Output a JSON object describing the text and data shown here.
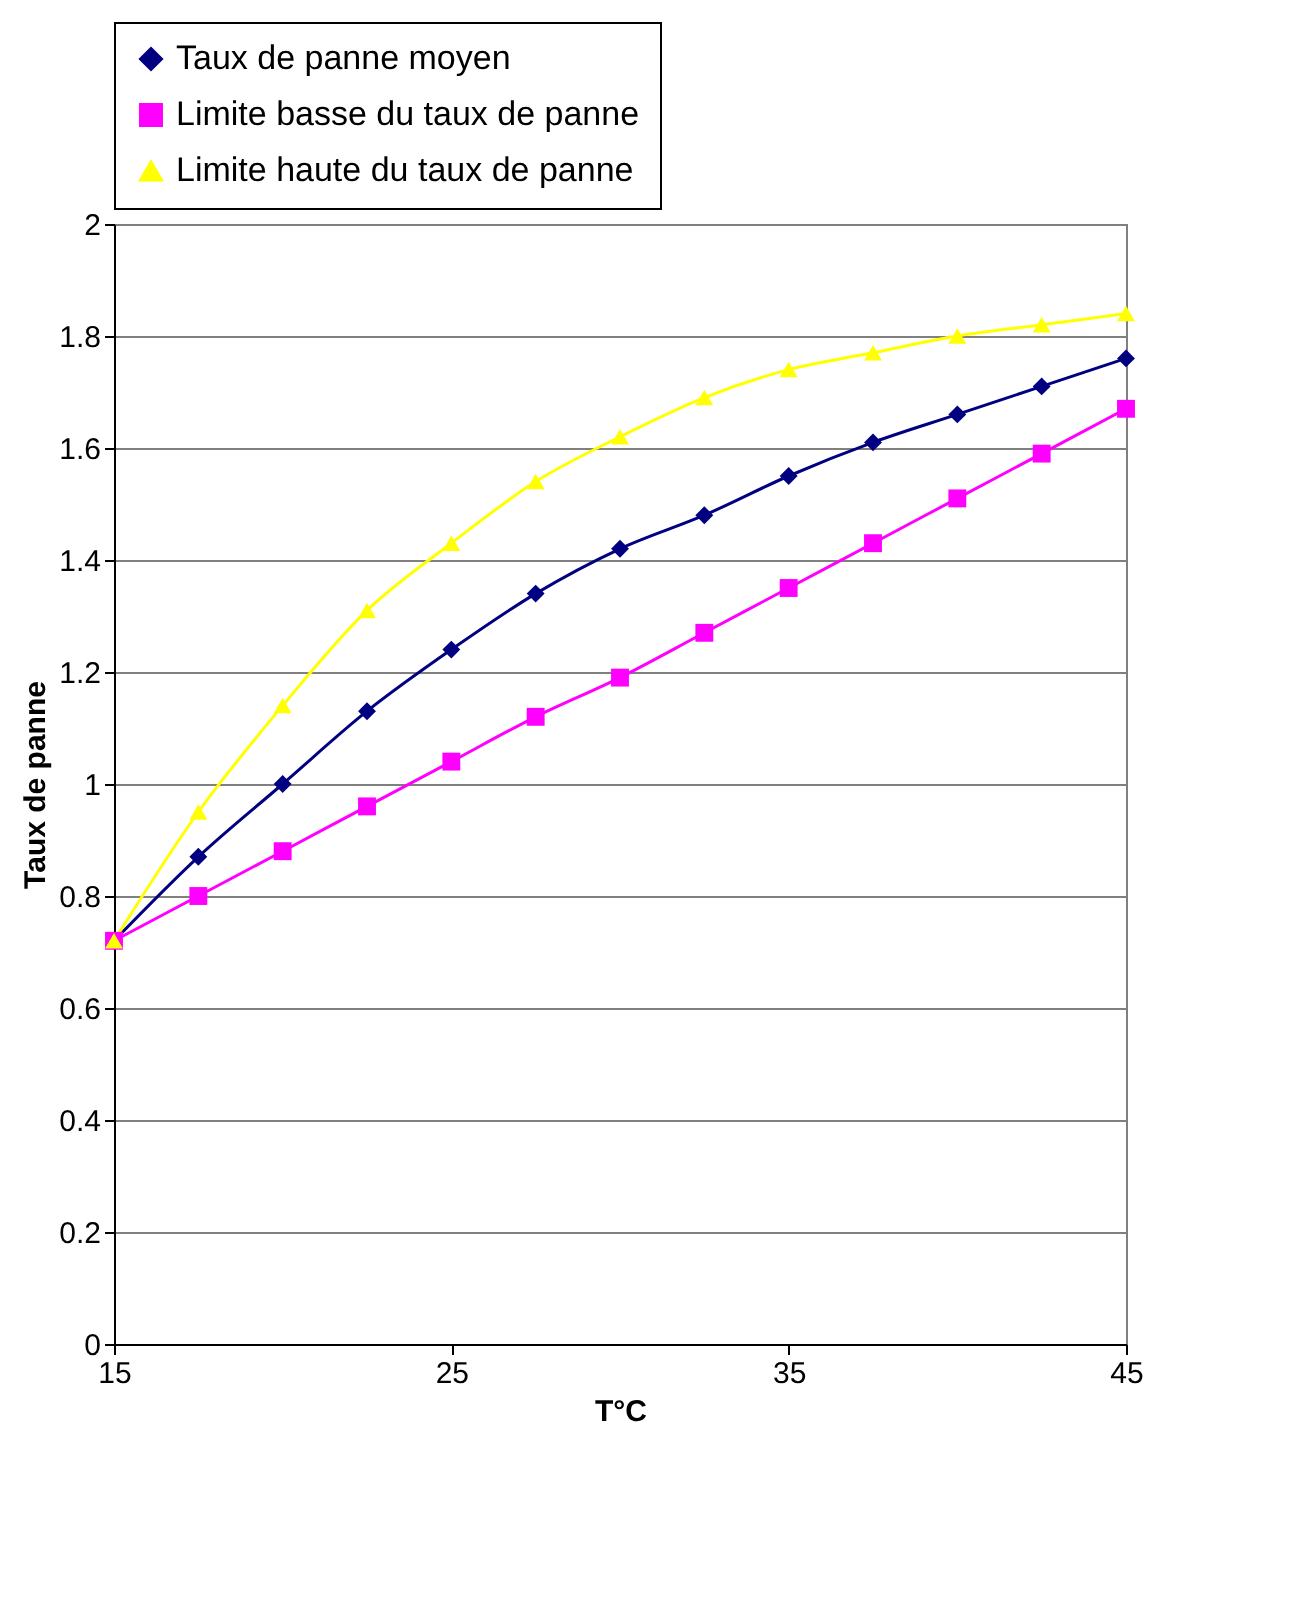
{
  "chart_data": {
    "type": "line",
    "xlabel": "T°C",
    "ylabel": "Taux de panne",
    "x": [
      15,
      17.5,
      20,
      22.5,
      25,
      27.5,
      30,
      32.5,
      35,
      37.5,
      40,
      42.5,
      45
    ],
    "series": [
      {
        "name": "Taux de panne moyen",
        "color": "#000080",
        "marker": "diamond",
        "values": [
          0.72,
          0.87,
          1.0,
          1.13,
          1.24,
          1.34,
          1.42,
          1.48,
          1.55,
          1.61,
          1.66,
          1.71,
          1.76
        ]
      },
      {
        "name": "Limite basse du taux de panne",
        "color": "#ff00ff",
        "marker": "square",
        "values": [
          0.72,
          0.8,
          0.88,
          0.96,
          1.04,
          1.12,
          1.19,
          1.27,
          1.35,
          1.43,
          1.51,
          1.59,
          1.67
        ]
      },
      {
        "name": "Limite haute du taux de panne",
        "color": "#ffff00",
        "marker": "triangle",
        "values": [
          0.72,
          0.95,
          1.14,
          1.31,
          1.43,
          1.54,
          1.62,
          1.69,
          1.74,
          1.77,
          1.8,
          1.82,
          1.84
        ]
      }
    ],
    "xlim": [
      15,
      45
    ],
    "xticks": [
      15,
      25,
      35,
      45
    ],
    "ylim": [
      0,
      2
    ],
    "yticks": [
      0,
      0.2,
      0.4,
      0.6,
      0.8,
      1,
      1.2,
      1.4,
      1.6,
      1.8,
      2
    ],
    "grid": "y",
    "legend": "top"
  }
}
